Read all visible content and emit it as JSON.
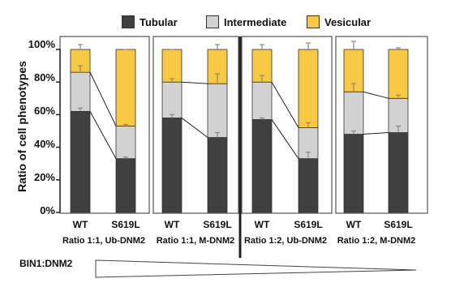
{
  "legend": [
    {
      "name": "Tubular",
      "color": "#404040"
    },
    {
      "name": "Intermediate",
      "color": "#d2d2d2"
    },
    {
      "name": "Vesicular",
      "color": "#f7c843"
    }
  ],
  "ratio_label": "BIN1:DNM2",
  "chart_data": {
    "type": "bar",
    "stacked": true,
    "ylabel": "Ratio of cell phenotypes",
    "xlabel": "",
    "ylim": [
      0,
      100
    ],
    "yticks": [
      "0%",
      "20%",
      "40%",
      "60%",
      "80%",
      "100%"
    ],
    "panels": [
      {
        "label": "Ratio 1:1, Ub-DNM2",
        "categories": [
          "WT",
          "S619L"
        ]
      },
      {
        "label": "Ratio 1:1, M-DNM2",
        "categories": [
          "WT",
          "S619L"
        ]
      },
      {
        "label": "Ratio 1:2, Ub-DNM2",
        "categories": [
          "WT",
          "S619L"
        ]
      },
      {
        "label": "Ratio 1:2, M-DNM2",
        "categories": [
          "WT",
          "S619L"
        ]
      }
    ],
    "series": [
      {
        "name": "Tubular",
        "values": [
          62,
          33,
          58,
          46,
          57,
          33,
          48,
          49
        ]
      },
      {
        "name": "Intermediate",
        "values": [
          24,
          20,
          22,
          33,
          23,
          19,
          26,
          21
        ]
      },
      {
        "name": "Vesicular",
        "values": [
          14,
          47,
          20,
          21,
          20,
          48,
          26,
          30
        ]
      }
    ],
    "error_tops": [
      [
        64,
        34,
        60,
        49,
        58,
        37,
        50,
        53
      ],
      [
        90,
        54,
        82,
        85,
        84,
        55,
        79,
        72
      ],
      [
        103,
        100,
        100,
        103,
        103,
        104,
        105,
        101
      ]
    ]
  }
}
